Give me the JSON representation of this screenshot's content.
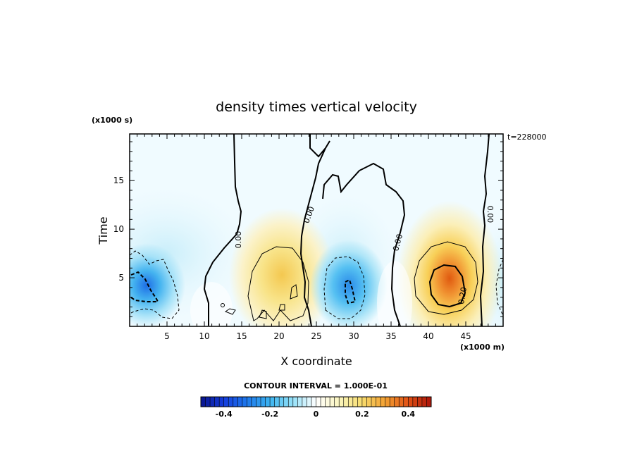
{
  "chart_data": {
    "type": "heatmap",
    "title": "density times vertical velocity",
    "xlabel": "X coordinate",
    "ylabel": "Time",
    "x_unit": "(x1000 m)",
    "y_unit": "(x1000 s)",
    "time_label": "t=228000",
    "xlim": [
      0,
      50
    ],
    "ylim": [
      0,
      19.8
    ],
    "x_ticks": [
      5,
      10,
      15,
      20,
      25,
      30,
      35,
      40,
      45
    ],
    "y_ticks": [
      5,
      10,
      15
    ],
    "contour_interval_label": "CONTOUR INTERVAL = 1.000E-01",
    "contour_interval": 0.1,
    "contour_labels": [
      "0.00",
      "0.00",
      "0.00",
      "0.00",
      "0.20"
    ],
    "colorbar": {
      "range": [
        -0.5,
        0.5
      ],
      "tick_values": [
        -0.4,
        -0.2,
        0,
        0.2,
        0.4
      ],
      "tick_labels": [
        "-0.4",
        "-0.2",
        "0",
        "0.2",
        "0.4"
      ]
    },
    "features": [
      {
        "name": "negative lobe",
        "x": 1.8,
        "y": 4.0,
        "peak": -0.32
      },
      {
        "name": "positive lobe",
        "x": 20.5,
        "y": 5.5,
        "peak": 0.18
      },
      {
        "name": "negative lobe",
        "x": 29.5,
        "y": 4.0,
        "peak": -0.28
      },
      {
        "name": "positive lobe",
        "x": 42.8,
        "y": 3.5,
        "peak": 0.38
      }
    ]
  },
  "colors": {
    "negative_deep": "#0a2fd0",
    "negative_mid": "#3fb0f0",
    "neutral": "#ffffff",
    "positive_mid": "#f7e070",
    "positive_deep": "#e06010"
  }
}
